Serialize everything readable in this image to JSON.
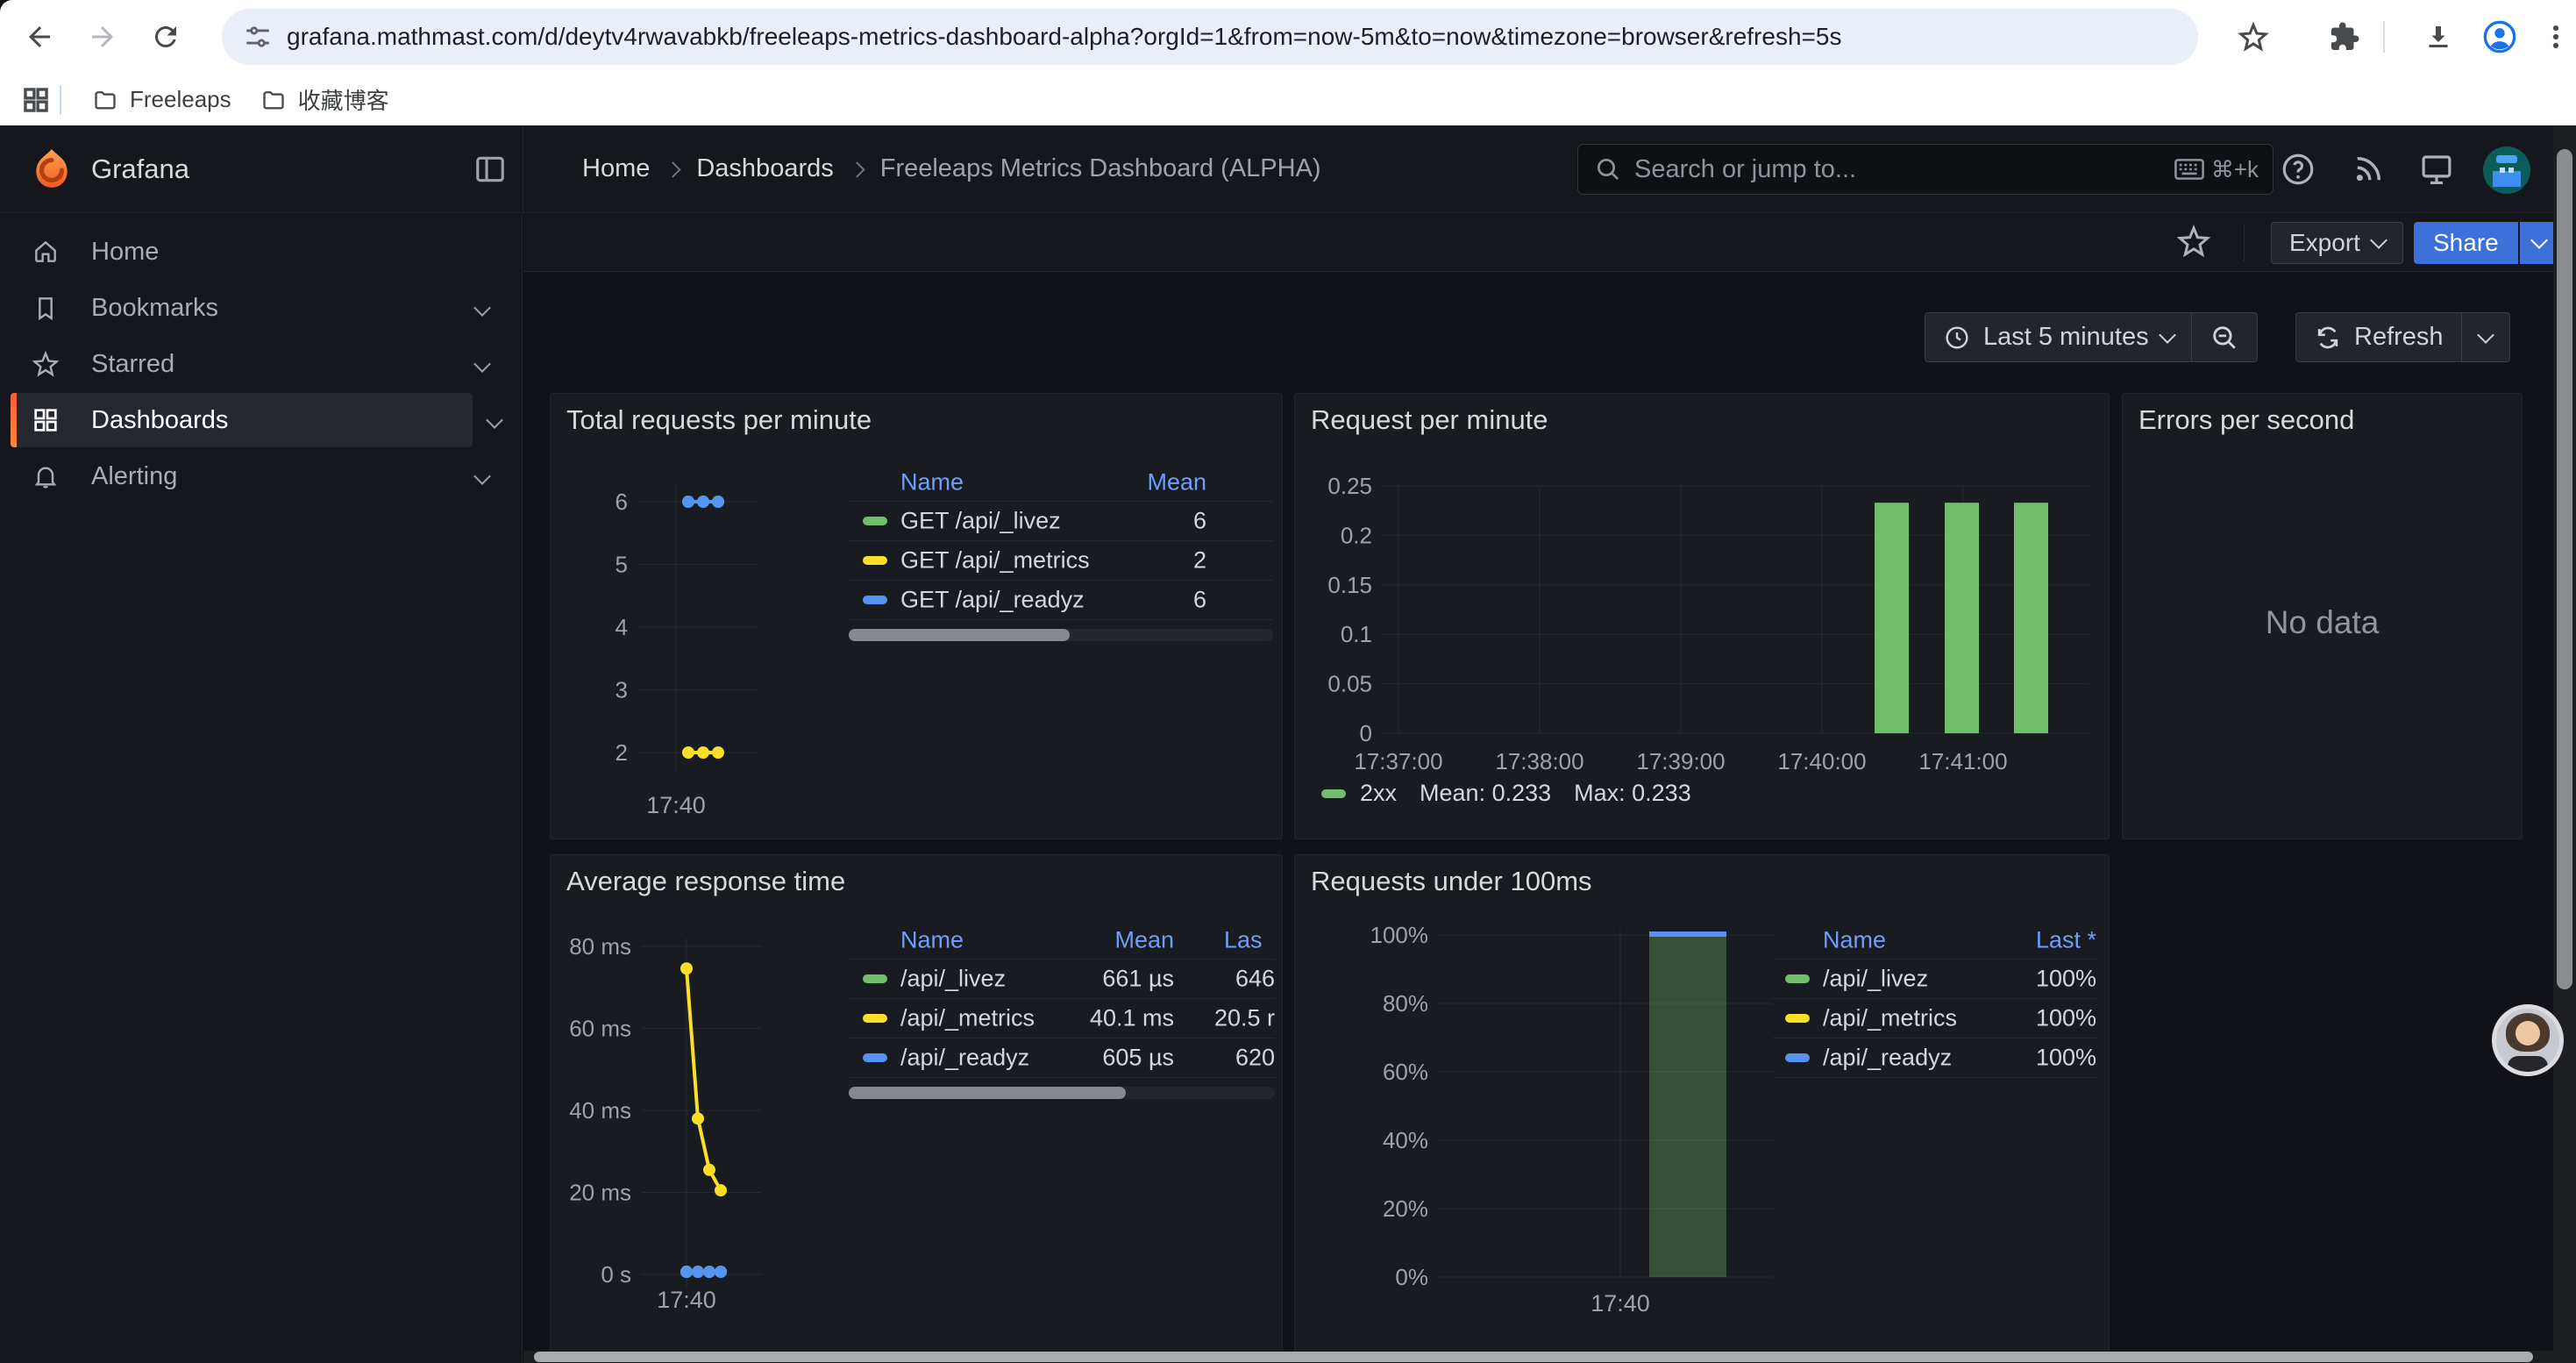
{
  "browser": {
    "url": "grafana.mathmast.com/d/deytv4rwavabkb/freeleaps-metrics-dashboard-alpha?orgId=1&from=now-5m&to=now&timezone=browser&refresh=5s",
    "bookmarks": [
      {
        "label": "Freeleaps"
      },
      {
        "label": "收藏博客"
      }
    ]
  },
  "header": {
    "brand": "Grafana",
    "breadcrumbs": [
      {
        "label": "Home"
      },
      {
        "label": "Dashboards"
      },
      {
        "label": "Freeleaps Metrics Dashboard (ALPHA)"
      }
    ],
    "search": {
      "placeholder": "Search or jump to...",
      "shortcut": "⌘+k"
    },
    "actions": {
      "export_label": "Export",
      "share_label": "Share"
    }
  },
  "sidebar": {
    "items": [
      {
        "label": "Home"
      },
      {
        "label": "Bookmarks"
      },
      {
        "label": "Starred"
      },
      {
        "label": "Dashboards"
      },
      {
        "label": "Alerting"
      }
    ]
  },
  "timebar": {
    "range_label": "Last 5 minutes",
    "refresh_label": "Refresh"
  },
  "panels": {
    "total_requests": {
      "title": "Total requests per minute",
      "legend_headers": [
        "Name",
        "Mean"
      ],
      "chart_data": {
        "type": "line",
        "x_ticks": [
          "17:40"
        ],
        "y_ticks": [
          "6",
          "5",
          "4",
          "3",
          "2"
        ],
        "ylim": [
          2,
          6
        ],
        "series": [
          {
            "name": "GET /api/_livez",
            "color": "#73bf69",
            "values": [
              6,
              6,
              6
            ],
            "mean": "6"
          },
          {
            "name": "GET /api/_metrics",
            "color": "#fade2a",
            "values": [
              2,
              2,
              2
            ],
            "mean": "2"
          },
          {
            "name": "GET /api/_readyz",
            "color": "#5794f2",
            "values": [
              6,
              6,
              6
            ],
            "mean": "6"
          }
        ]
      }
    },
    "request_per_minute": {
      "title": "Request per minute",
      "legend": {
        "name": "2xx",
        "mean": "Mean: 0.233",
        "max": "Max: 0.233"
      },
      "chart_data": {
        "type": "bar",
        "x_ticks": [
          "17:37:00",
          "17:38:00",
          "17:39:00",
          "17:40:00",
          "17:41:00"
        ],
        "y_ticks": [
          "0.25",
          "0.2",
          "0.15",
          "0.1",
          "0.05",
          "0"
        ],
        "ylim": [
          0,
          0.25
        ],
        "series": [
          {
            "name": "2xx",
            "color": "#73bf69",
            "values": [
              0.233,
              0.233,
              0.233
            ]
          }
        ]
      }
    },
    "errors_per_second": {
      "title": "Errors per second",
      "no_data_label": "No data"
    },
    "avg_response_time": {
      "title": "Average response time",
      "legend_headers": [
        "Name",
        "Mean",
        "Las"
      ],
      "chart_data": {
        "type": "line",
        "x_ticks": [
          "17:40"
        ],
        "y_ticks": [
          "80 ms",
          "60 ms",
          "40 ms",
          "20 ms",
          "0 s"
        ],
        "ylim_ms": [
          0,
          80
        ],
        "series": [
          {
            "name": "/api/_livez",
            "color": "#73bf69",
            "values_ms": [
              0.66,
              0.66,
              0.65,
              0.65
            ],
            "mean": "661 µs",
            "last": "646"
          },
          {
            "name": "/api/_metrics",
            "color": "#fade2a",
            "values_ms": [
              74.6,
              38,
              25.5,
              20.5
            ],
            "mean": "40.1 ms",
            "last": "20.5 r"
          },
          {
            "name": "/api/_readyz",
            "color": "#5794f2",
            "values_ms": [
              0.6,
              0.6,
              0.6,
              0.62
            ],
            "mean": "605 µs",
            "last": "620"
          }
        ]
      }
    },
    "under_100ms": {
      "title": "Requests under 100ms",
      "legend_headers": [
        "Name",
        "Last *"
      ],
      "chart_data": {
        "type": "bar",
        "x_ticks": [
          "17:40"
        ],
        "y_ticks": [
          "100%",
          "80%",
          "60%",
          "40%",
          "20%",
          "0%"
        ],
        "ylim": [
          0,
          1
        ],
        "series": [
          {
            "name": "/api/_livez",
            "color": "#73bf69",
            "values": [
              1.0
            ],
            "last": "100%"
          },
          {
            "name": "/api/_metrics",
            "color": "#fade2a",
            "values": [
              1.0
            ],
            "last": "100%"
          },
          {
            "name": "/api/_readyz",
            "color": "#5794f2",
            "values": [
              1.0
            ],
            "last": "100%"
          }
        ]
      }
    }
  }
}
